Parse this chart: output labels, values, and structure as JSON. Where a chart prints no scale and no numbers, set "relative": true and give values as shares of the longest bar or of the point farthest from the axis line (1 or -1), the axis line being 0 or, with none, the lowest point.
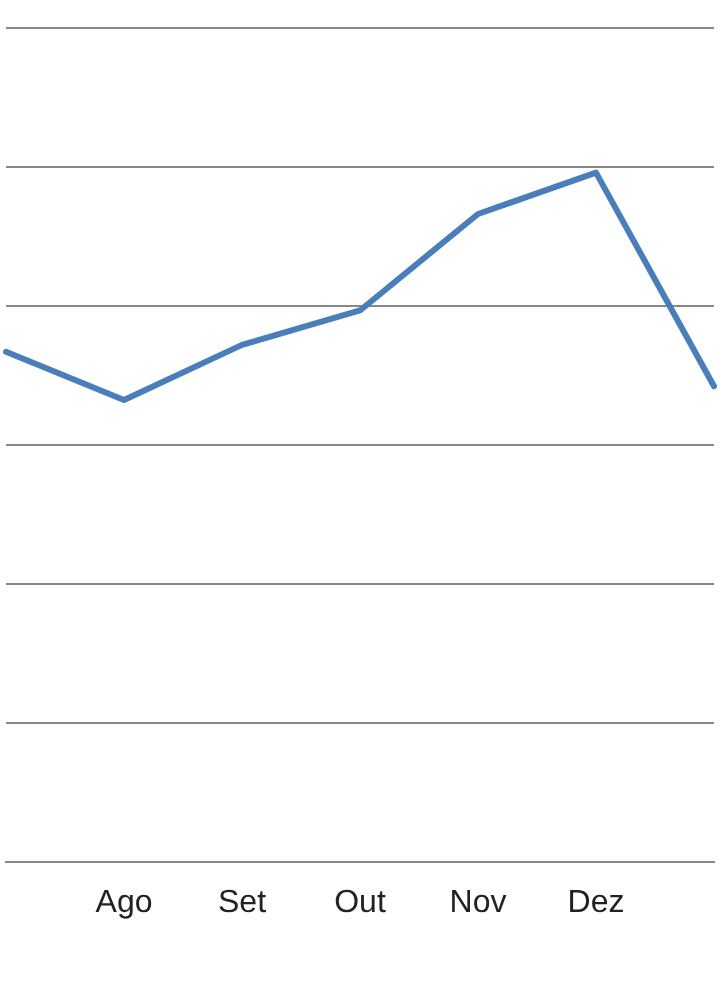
{
  "chart_data": {
    "type": "line",
    "relative": true,
    "grid": "y",
    "marker": "none",
    "line_style": "solid",
    "categories": [
      null,
      "Ago",
      "Set",
      "Out",
      "Nov",
      "Dez",
      null
    ],
    "series": [
      {
        "color": "#4a7ebb",
        "values": [
          0.74,
          0.67,
          0.75,
          0.8,
          0.94,
          1,
          0.69
        ]
      }
    ]
  }
}
